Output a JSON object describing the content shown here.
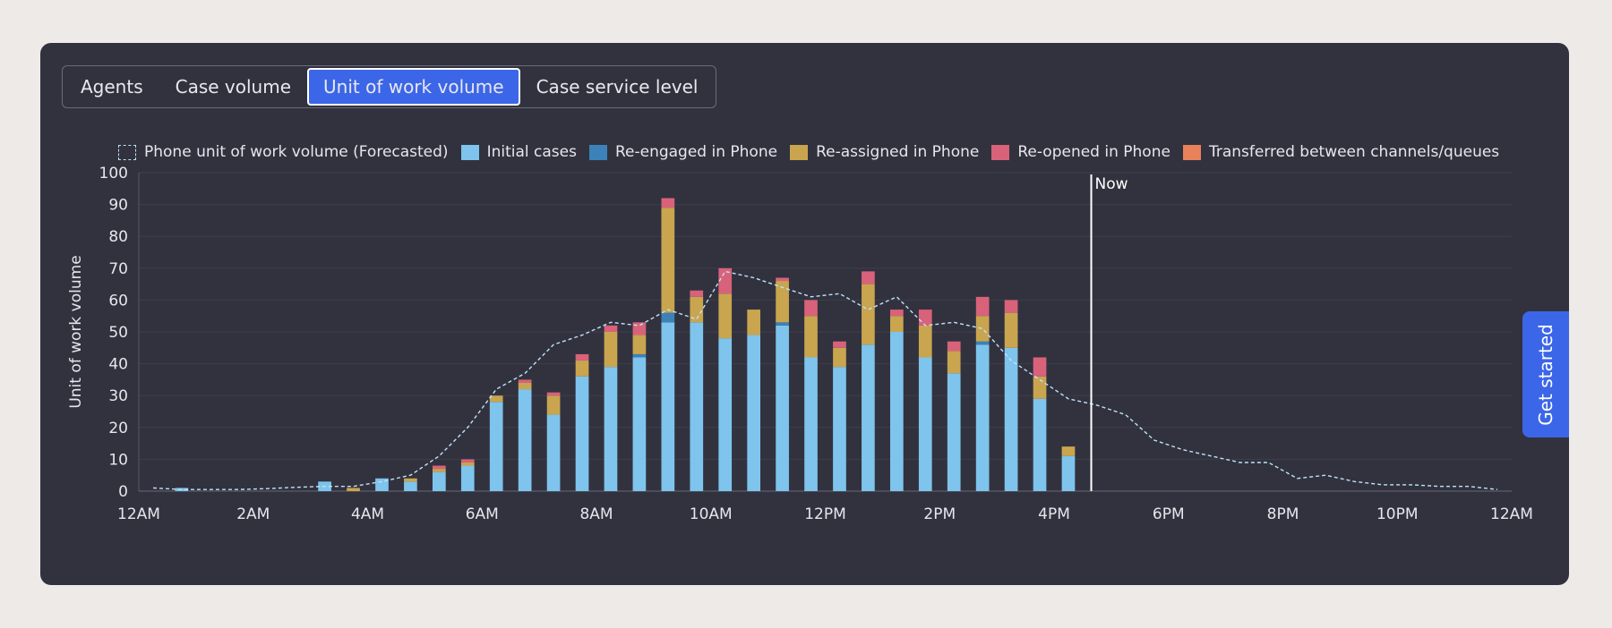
{
  "tabs": [
    {
      "label": "Agents",
      "active": false
    },
    {
      "label": "Case volume",
      "active": false
    },
    {
      "label": "Unit of work volume",
      "active": true
    },
    {
      "label": "Case service level",
      "active": false
    }
  ],
  "get_started_label": "Get started",
  "colors": {
    "forecast": "#bfe3f8",
    "initial": "#7ec4ec",
    "reengaged": "#3b82b9",
    "reassigned": "#c9a54f",
    "reopened": "#d8627a",
    "transferred": "#e8825b",
    "now_line": "#ffffff",
    "axis_text": "#e6e6ec"
  },
  "chart_data": {
    "type": "bar",
    "stacked": true,
    "ylabel": "Unit of work volume",
    "xlabel": "",
    "ylim": [
      0,
      100
    ],
    "yticks": [
      0,
      10,
      20,
      30,
      40,
      50,
      60,
      70,
      80,
      90,
      100
    ],
    "xlim_hours": [
      0,
      24
    ],
    "xticks": [
      {
        "label": "12AM",
        "hour": 0
      },
      {
        "label": "2AM",
        "hour": 2
      },
      {
        "label": "4AM",
        "hour": 4
      },
      {
        "label": "6AM",
        "hour": 6
      },
      {
        "label": "8AM",
        "hour": 8
      },
      {
        "label": "10AM",
        "hour": 10
      },
      {
        "label": "12PM",
        "hour": 12
      },
      {
        "label": "2PM",
        "hour": 14
      },
      {
        "label": "4PM",
        "hour": 16
      },
      {
        "label": "6PM",
        "hour": 18
      },
      {
        "label": "8PM",
        "hour": 20
      },
      {
        "label": "10PM",
        "hour": 22
      },
      {
        "label": "12AM",
        "hour": 24
      }
    ],
    "grid": true,
    "legend_position": "top-left",
    "now_marker": {
      "label": "Now",
      "hour": 16.65
    },
    "bar_hours": [
      0.75,
      3.25,
      3.75,
      4.25,
      4.75,
      5.25,
      5.75,
      6.25,
      6.75,
      7.25,
      7.75,
      8.25,
      8.75,
      9.25,
      9.75,
      10.25,
      10.75,
      11.25,
      11.75,
      12.25,
      12.75,
      13.25,
      13.75,
      14.25,
      14.75,
      15.25,
      15.75,
      16.25
    ],
    "series": [
      {
        "name": "Initial cases",
        "color_key": "initial",
        "values": [
          1,
          3,
          0,
          4,
          3,
          6,
          8,
          28,
          32,
          24,
          36,
          39,
          42,
          53,
          53,
          48,
          49,
          52,
          42,
          39,
          46,
          50,
          42,
          37,
          46,
          45,
          29,
          11
        ]
      },
      {
        "name": "Re-engaged in Phone",
        "color_key": "reengaged",
        "values": [
          0,
          0,
          0,
          0,
          0,
          0,
          0,
          0,
          0,
          0,
          0,
          0,
          1,
          3,
          0,
          0,
          0,
          1,
          0,
          0,
          0,
          0,
          0,
          0,
          1,
          0,
          0,
          0
        ]
      },
      {
        "name": "Re-assigned in Phone",
        "color_key": "reassigned",
        "values": [
          0,
          0,
          1,
          0,
          1,
          1,
          1,
          2,
          2,
          6,
          5,
          11,
          6,
          33,
          8,
          14,
          8,
          13,
          13,
          6,
          19,
          5,
          10,
          7,
          8,
          11,
          7,
          3
        ]
      },
      {
        "name": "Re-opened in Phone",
        "color_key": "reopened",
        "values": [
          0,
          0,
          0,
          0,
          0,
          1,
          1,
          0,
          1,
          1,
          2,
          2,
          4,
          3,
          2,
          8,
          0,
          1,
          5,
          2,
          4,
          2,
          5,
          3,
          6,
          4,
          6,
          0
        ]
      },
      {
        "name": "Transferred between channels/queues",
        "color_key": "transferred",
        "values": [
          0,
          0,
          0,
          0,
          0,
          0,
          0,
          0,
          0,
          0,
          0,
          0,
          0,
          0,
          0,
          0,
          0,
          0,
          0,
          0,
          0,
          0,
          0,
          0,
          0,
          0,
          0,
          0
        ]
      }
    ],
    "forecast": {
      "name": "Phone unit of work volume (Forecasted)",
      "color_key": "forecast",
      "hours": [
        0.25,
        0.75,
        1.25,
        1.75,
        2.25,
        2.75,
        3.25,
        3.75,
        4.25,
        4.75,
        5.25,
        5.75,
        6.25,
        6.75,
        7.25,
        7.75,
        8.25,
        8.75,
        9.25,
        9.75,
        10.25,
        10.75,
        11.25,
        11.75,
        12.25,
        12.75,
        13.25,
        13.75,
        14.25,
        14.75,
        15.25,
        15.75,
        16.25,
        16.75,
        17.25,
        17.75,
        18.25,
        18.75,
        19.25,
        19.75,
        20.25,
        20.75,
        21.25,
        21.75,
        22.25,
        22.75,
        23.25,
        23.75
      ],
      "values": [
        1,
        0.5,
        0.5,
        0.5,
        0.8,
        1.2,
        1.5,
        1.5,
        3,
        5,
        11,
        20,
        32,
        37,
        46,
        49,
        53,
        52,
        57,
        54,
        69,
        67,
        64,
        61,
        62,
        57,
        61,
        52,
        53,
        51,
        41,
        35,
        29,
        27,
        24,
        16,
        13,
        11,
        9,
        9,
        4,
        5,
        3,
        2,
        2,
        1.5,
        1.5,
        0.5
      ]
    }
  }
}
